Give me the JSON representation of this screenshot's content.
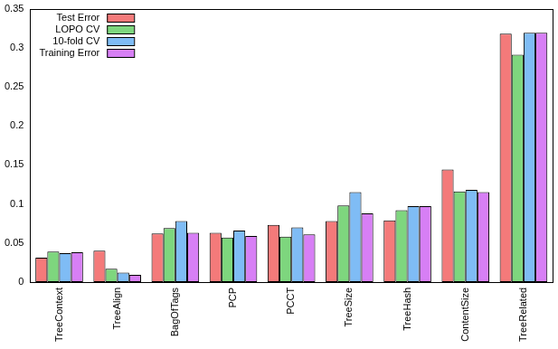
{
  "chart_data": {
    "type": "bar",
    "categories": [
      "TreeContext",
      "TreeAlign",
      "BagOfTags",
      "PCP",
      "PCCT",
      "TreeSize",
      "TreeHash",
      "ContentSize",
      "TreeRelated"
    ],
    "series": [
      {
        "name": "Test Error",
        "color": "#f47a7a",
        "values": [
          0.031,
          0.04,
          0.062,
          0.063,
          0.073,
          0.078,
          0.079,
          0.144,
          0.318
        ]
      },
      {
        "name": "LOPO CV",
        "color": "#7ed67e",
        "values": [
          0.039,
          0.017,
          0.069,
          0.057,
          0.058,
          0.098,
          0.092,
          0.116,
          0.291
        ]
      },
      {
        "name": "10-fold CV",
        "color": "#7fbcf5",
        "values": [
          0.037,
          0.012,
          0.078,
          0.066,
          0.07,
          0.115,
          0.097,
          0.118,
          0.319
        ]
      },
      {
        "name": "Training Error",
        "color": "#d77ff5",
        "values": [
          0.038,
          0.009,
          0.063,
          0.059,
          0.061,
          0.088,
          0.097,
          0.115,
          0.319
        ]
      }
    ],
    "ylim": [
      0,
      0.35
    ],
    "yticks": [
      0,
      0.05,
      0.1,
      0.15,
      0.2,
      0.25,
      0.3,
      0.35
    ],
    "grid": false,
    "legend": "upper left"
  }
}
